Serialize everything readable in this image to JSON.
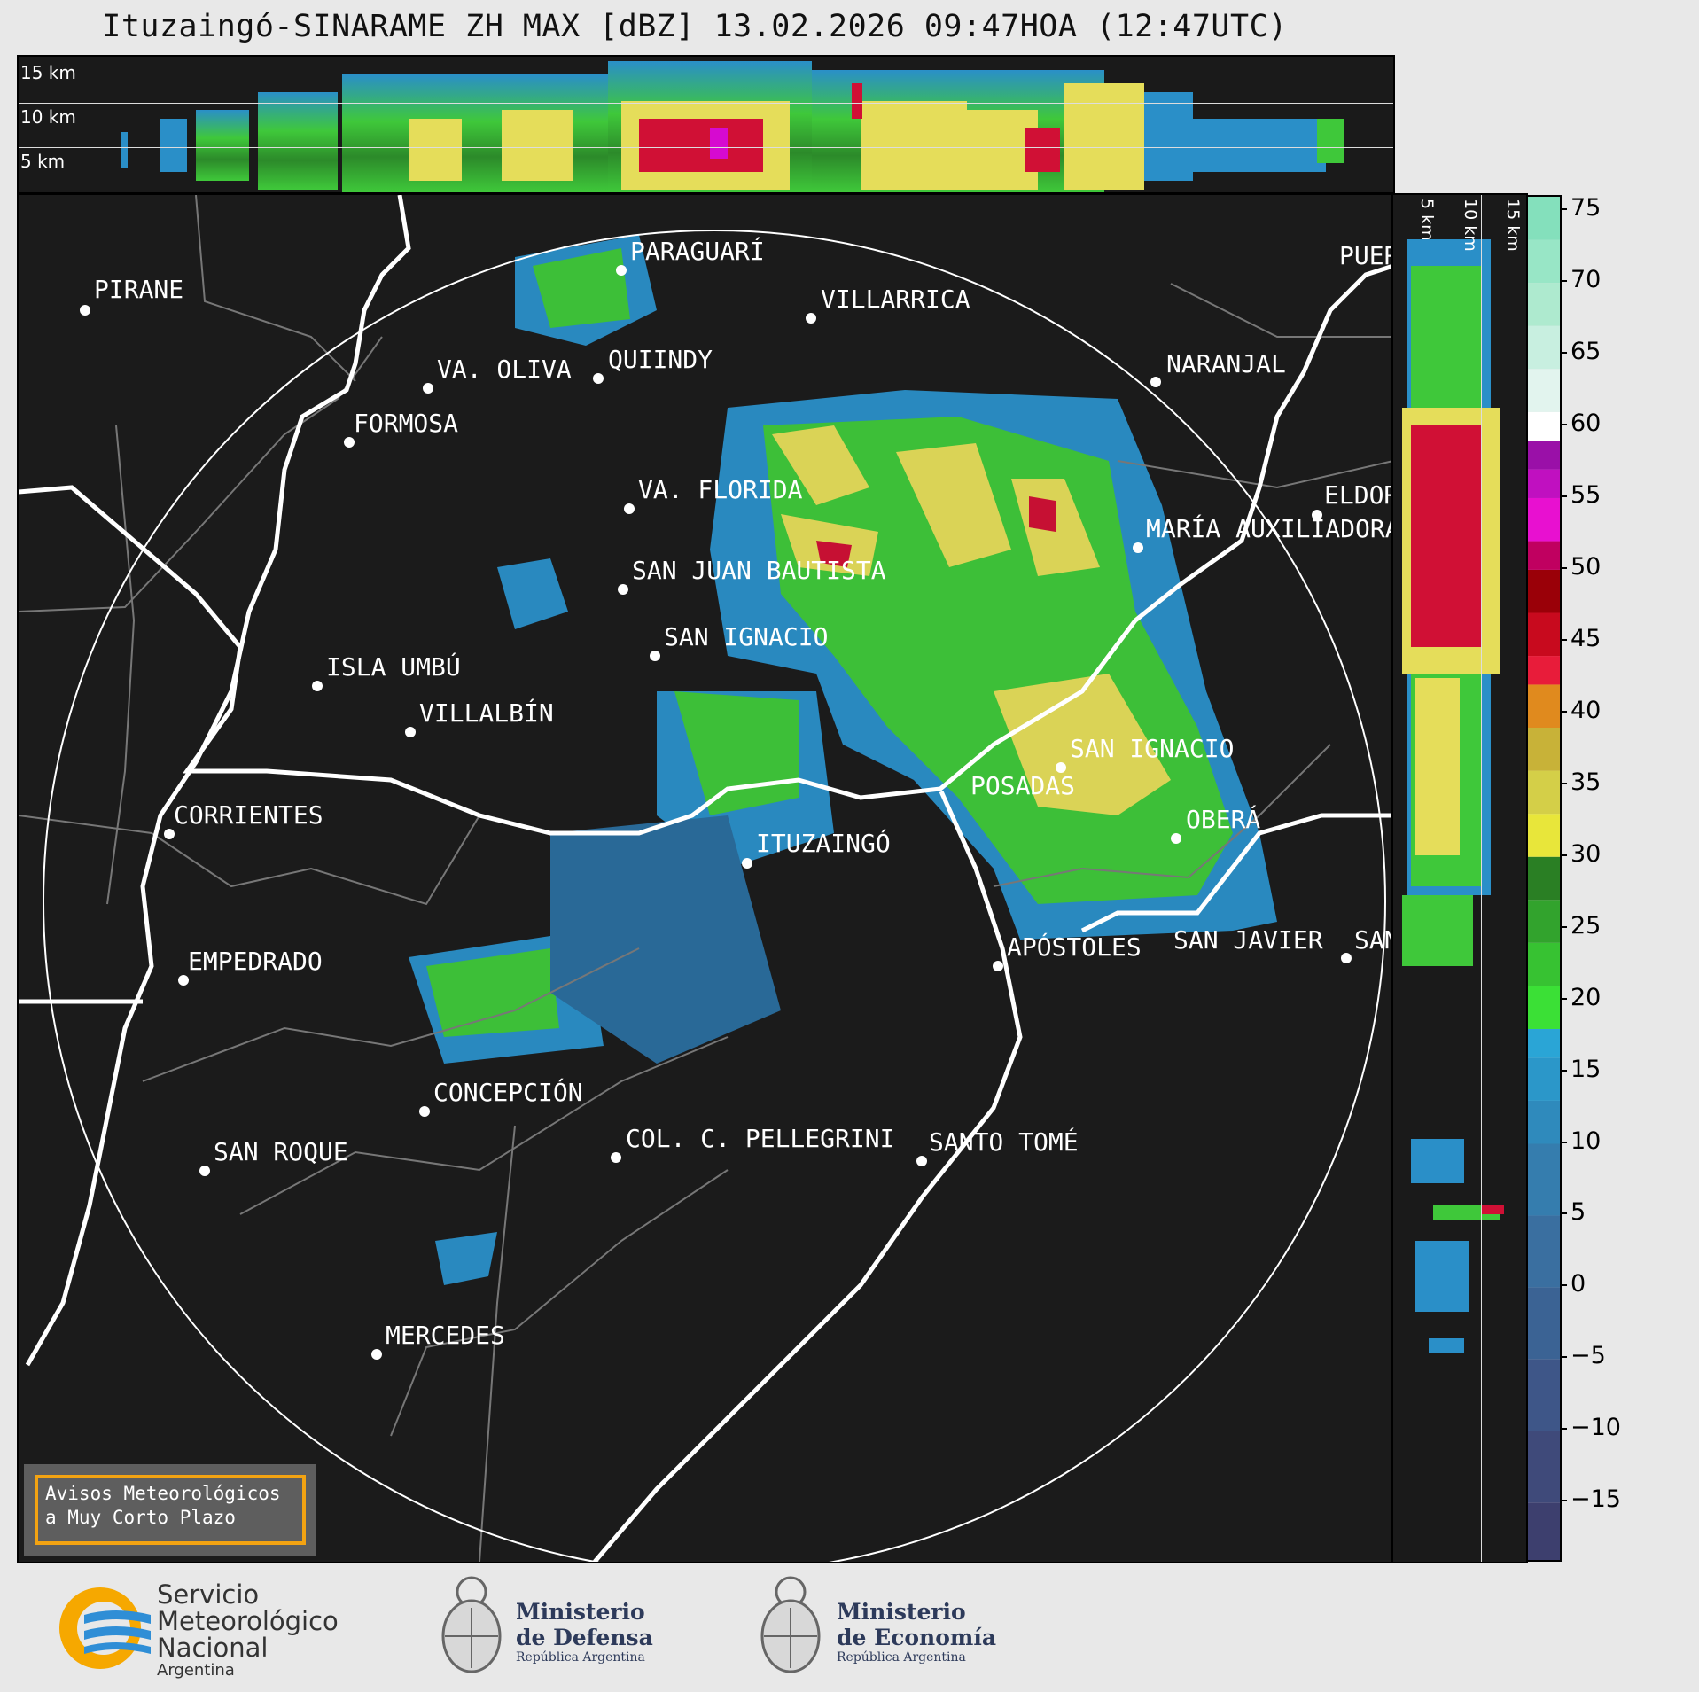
{
  "title": "Ituzaingó-SINARAME ZH MAX [dBZ] 13.02.2026 09:47HOA (12:47UTC)",
  "top_panel": {
    "altitude_labels": [
      "15 km",
      "10 km",
      "5 km"
    ]
  },
  "right_panel": {
    "altitude_labels": [
      "5 km",
      "10 km",
      "15 km"
    ]
  },
  "colorbar": {
    "unit": "dBZ",
    "ticks": [
      "75",
      "70",
      "65",
      "60",
      "55",
      "50",
      "45",
      "40",
      "35",
      "30",
      "25",
      "20",
      "15",
      "10",
      "5",
      "0",
      "−5",
      "−10",
      "−15"
    ],
    "range": [
      -19,
      76
    ]
  },
  "cities": [
    {
      "name": "PIRANE"
    },
    {
      "name": "PARAGUARÍ"
    },
    {
      "name": "VILLARRICA"
    },
    {
      "name": "VA. OLIVA"
    },
    {
      "name": "QUIINDY"
    },
    {
      "name": "FORMOSA"
    },
    {
      "name": "NARANJAL"
    },
    {
      "name": "VA. FLORIDA"
    },
    {
      "name": "ELDORADO"
    },
    {
      "name": "MARÍA AUXILIADORA"
    },
    {
      "name": "SAN JUAN BAUTISTA"
    },
    {
      "name": "SAN IGNACIO"
    },
    {
      "name": "ISLA UMBÚ"
    },
    {
      "name": "VILLALBÍN"
    },
    {
      "name": "SAN IGNACIO"
    },
    {
      "name": "POSADAS"
    },
    {
      "name": "CORRIENTES"
    },
    {
      "name": "ITUZAINGÓ"
    },
    {
      "name": "OBERÁ"
    },
    {
      "name": "EMPEDRADO"
    },
    {
      "name": "APÓSTOLES"
    },
    {
      "name": "SAN JAVIER"
    },
    {
      "name": "SAN"
    },
    {
      "name": "CONCEPCIÓN"
    },
    {
      "name": "COL. C. PELLEGRINI"
    },
    {
      "name": "SANTO TOMÉ"
    },
    {
      "name": "SAN ROQUE"
    },
    {
      "name": "MERCEDES"
    },
    {
      "name": "PUERTO"
    }
  ],
  "avisos": {
    "line1": "Avisos Meteorológicos",
    "line2": "a Muy Corto Plazo"
  },
  "footer": {
    "smn": {
      "line1": "Servicio",
      "line2": "Meteorológico",
      "line3": "Nacional",
      "line4": "Argentina"
    },
    "defensa": {
      "line1": "Ministerio",
      "line2": "de Defensa",
      "line3": "República Argentina"
    },
    "economia": {
      "line1": "Ministerio",
      "line2": "de Economía",
      "line3": "República Argentina"
    }
  }
}
